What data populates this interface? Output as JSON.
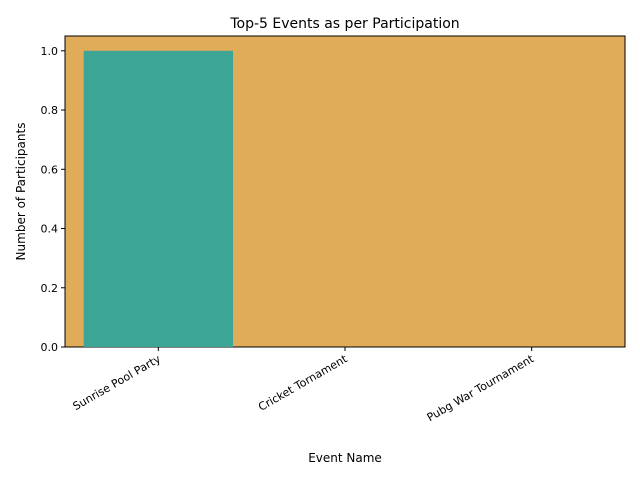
{
  "chart_data": {
    "type": "bar",
    "title": "Top-5 Events as per Participation",
    "xlabel": "Event Name",
    "ylabel": "Number of Participants",
    "categories": [
      "Sunrise Pool Party",
      "Cricket Tornament",
      "Pubg War Tournament"
    ],
    "values": [
      1,
      0,
      0
    ],
    "ylim": [
      0,
      1.05
    ],
    "yticks": [
      "0.0",
      "0.2",
      "0.4",
      "0.6",
      "0.8",
      "1.0"
    ],
    "grid": false,
    "plot_background": "#e0ac5a",
    "bar_color": "#3ca595"
  }
}
